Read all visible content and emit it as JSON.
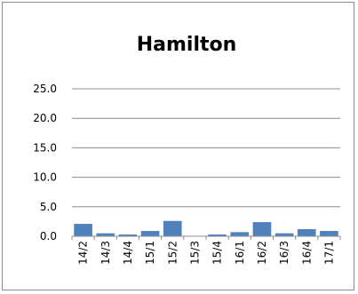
{
  "chart_data": {
    "type": "bar",
    "title": "Hamilton",
    "xlabel": "",
    "ylabel": "",
    "categories": [
      "14/2",
      "14/3",
      "14/4",
      "15/1",
      "15/2",
      "15/3",
      "15/4",
      "16/1",
      "16/2",
      "16/3",
      "16/4",
      "17/1"
    ],
    "values": [
      2.1,
      0.5,
      0.3,
      0.9,
      2.6,
      0.0,
      0.3,
      0.7,
      2.4,
      0.5,
      1.2,
      0.9
    ],
    "ylim": [
      0,
      25
    ],
    "yticks": [
      "0.0",
      "5.0",
      "10.0",
      "15.0",
      "20.0",
      "25.0"
    ],
    "grid": true,
    "legend": "none",
    "colors": {
      "bar": "#4f81bd",
      "grid": "#8c8c8c",
      "frame": "#8c8c8c",
      "text": "#000000"
    }
  }
}
